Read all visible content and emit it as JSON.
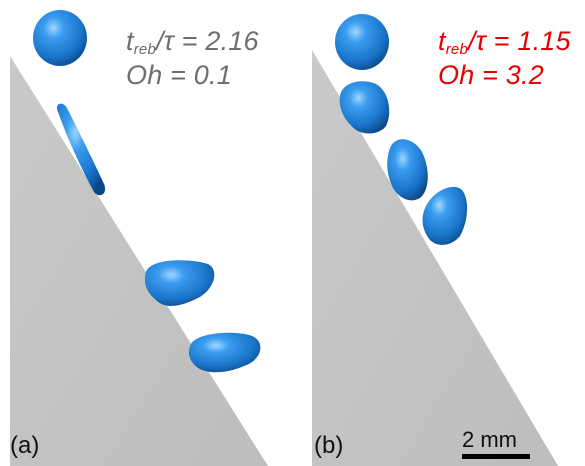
{
  "panel_a": {
    "label": "(a)",
    "t_symbol": "t",
    "t_subscript": "reb",
    "ratio_text": "/τ = 2.16",
    "oh_text": "Oh = 0.1",
    "text_color": "#6e6e6e"
  },
  "panel_b": {
    "label": "(b)",
    "t_symbol": "t",
    "t_subscript": "reb",
    "ratio_text": "/τ = 1.15",
    "oh_text": "Oh = 3.2",
    "text_color": "#e60000"
  },
  "scale_bar": {
    "label": "2 mm"
  },
  "colors": {
    "surface": "#c4c4c4",
    "droplet": "#1e7fd8",
    "droplet_highlight": "#7cc4ff",
    "droplet_shadow": "#0d4f95"
  }
}
